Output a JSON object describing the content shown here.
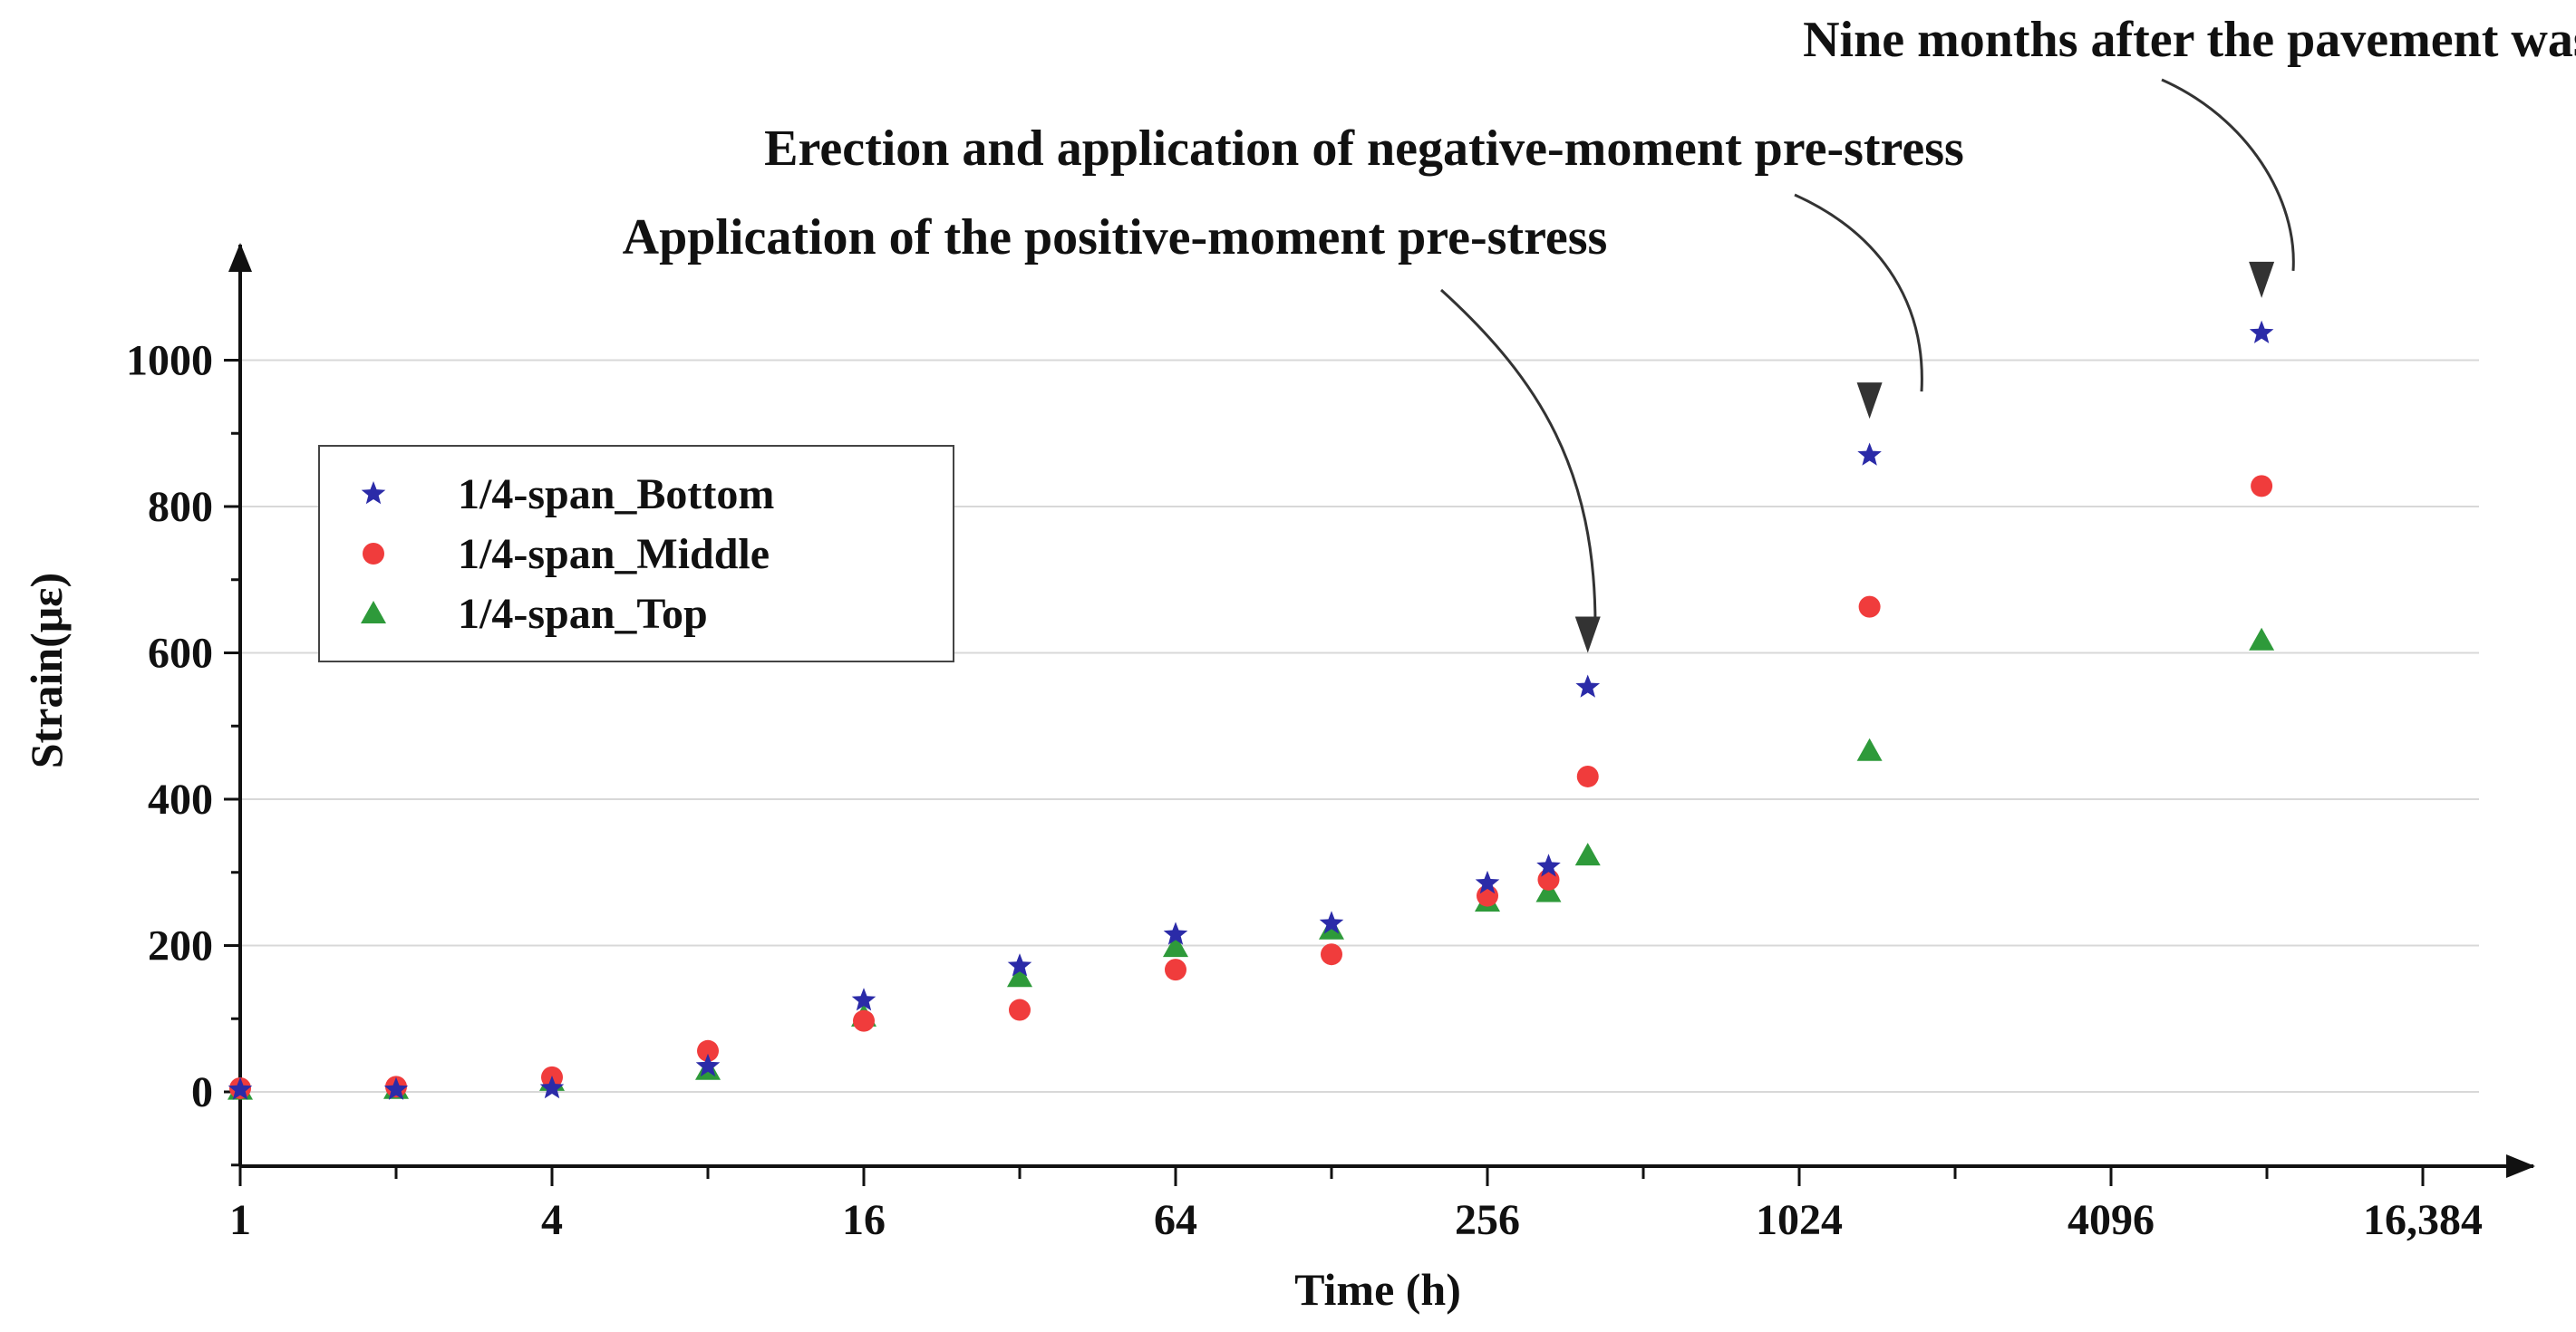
{
  "chart_data": {
    "type": "scatter",
    "title": "",
    "xlabel": "Time (h)",
    "ylabel": "Strain(με)",
    "x_scale": "log2",
    "xlim": [
      1,
      16384
    ],
    "ylim": [
      -100,
      1080
    ],
    "x_ticks": [
      1,
      4,
      16,
      64,
      256,
      1024,
      4096,
      16384
    ],
    "x_tick_labels": [
      "1",
      "4",
      "16",
      "64",
      "256",
      "1024",
      "4096",
      "16,384"
    ],
    "y_ticks": [
      0,
      200,
      400,
      600,
      800,
      1000
    ],
    "y_tick_labels": [
      "0",
      "200",
      "400",
      "600",
      "800",
      "1000"
    ],
    "grid": "horizontal",
    "legend_position": "upper-left",
    "series": [
      {
        "name": "1/4-span_Bottom",
        "marker": "star",
        "color": "#2b2ba8",
        "points": [
          {
            "x": 1,
            "y": 3
          },
          {
            "x": 2,
            "y": 3
          },
          {
            "x": 4,
            "y": 5
          },
          {
            "x": 8,
            "y": 35
          },
          {
            "x": 16,
            "y": 125
          },
          {
            "x": 32,
            "y": 172
          },
          {
            "x": 64,
            "y": 215
          },
          {
            "x": 128,
            "y": 230
          },
          {
            "x": 256,
            "y": 285
          },
          {
            "x": 336,
            "y": 308
          },
          {
            "x": 400,
            "y": 553
          },
          {
            "x": 1400,
            "y": 870
          },
          {
            "x": 8000,
            "y": 1037
          }
        ]
      },
      {
        "name": "1/4-span_Middle",
        "marker": "circle",
        "color": "#f03c3c",
        "points": [
          {
            "x": 1,
            "y": 5
          },
          {
            "x": 2,
            "y": 7
          },
          {
            "x": 4,
            "y": 20
          },
          {
            "x": 8,
            "y": 56
          },
          {
            "x": 16,
            "y": 97
          },
          {
            "x": 32,
            "y": 112
          },
          {
            "x": 64,
            "y": 167
          },
          {
            "x": 128,
            "y": 188
          },
          {
            "x": 256,
            "y": 268
          },
          {
            "x": 336,
            "y": 290
          },
          {
            "x": 400,
            "y": 431
          },
          {
            "x": 1400,
            "y": 663
          },
          {
            "x": 8000,
            "y": 828
          }
        ]
      },
      {
        "name": "1/4-span_Top",
        "marker": "triangle",
        "color": "#2e9a3a",
        "points": [
          {
            "x": 1,
            "y": 3
          },
          {
            "x": 2,
            "y": 4
          },
          {
            "x": 4,
            "y": 15
          },
          {
            "x": 8,
            "y": 30
          },
          {
            "x": 16,
            "y": 103
          },
          {
            "x": 32,
            "y": 157
          },
          {
            "x": 64,
            "y": 198
          },
          {
            "x": 128,
            "y": 222
          },
          {
            "x": 256,
            "y": 260
          },
          {
            "x": 336,
            "y": 273
          },
          {
            "x": 400,
            "y": 323
          },
          {
            "x": 1400,
            "y": 466
          },
          {
            "x": 8000,
            "y": 617
          }
        ]
      }
    ],
    "annotations": [
      {
        "text": "Application of the positive-moment pre-stress",
        "target": {
          "x": 400,
          "y": 600
        }
      },
      {
        "text": "Erection and application of negative-moment pre-stress",
        "target": {
          "x": 1400,
          "y": 920
        }
      },
      {
        "text": "Nine months after the pavement was created",
        "target": {
          "x": 8000,
          "y": 1085
        }
      }
    ]
  }
}
